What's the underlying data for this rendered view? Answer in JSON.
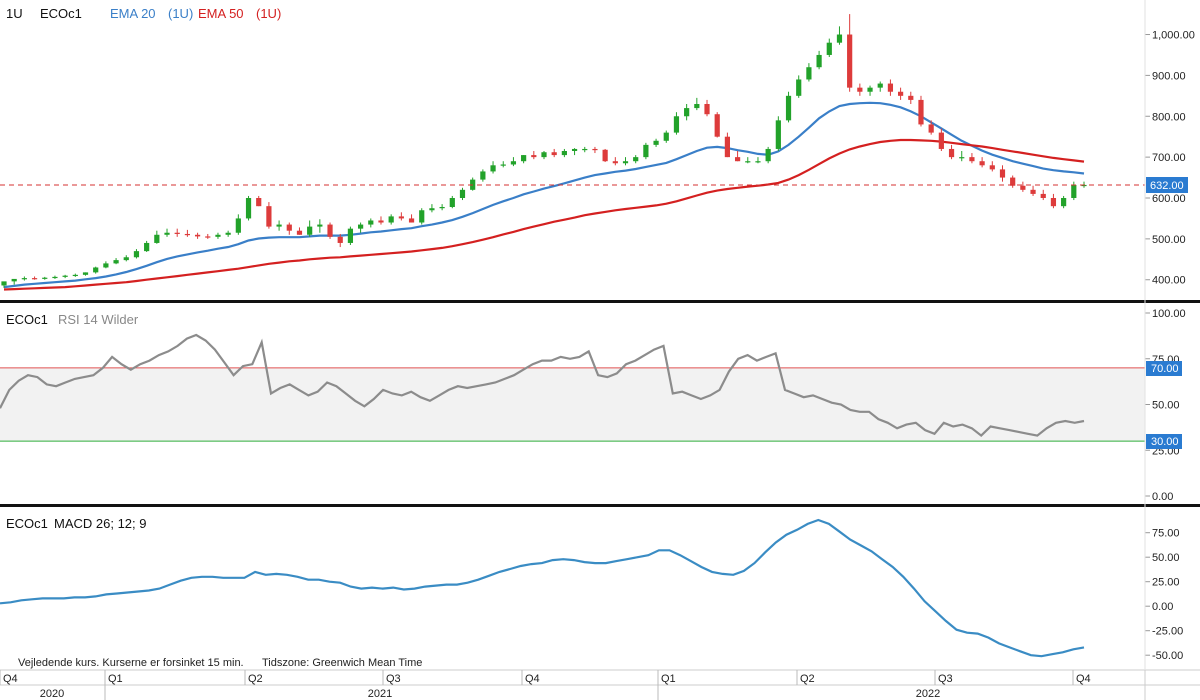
{
  "price_panel": {
    "interval": "1U",
    "symbol": "ECOc1",
    "ema20_label": "EMA 20",
    "ema20_suffix": "(1U)",
    "ema50_label": "EMA 50",
    "ema50_suffix": "(1U)",
    "last_price_label": "632.00",
    "y_ticks": [
      "1,000.00",
      "900.00",
      "800.00",
      "700.00",
      "600.00",
      "500.00",
      "400.00"
    ]
  },
  "rsi_panel": {
    "symbol": "ECOc1",
    "label": "RSI 14 Wilder",
    "upper_tag": "70.00",
    "lower_tag": "30.00",
    "y_ticks": [
      "100.00",
      "75.00",
      "50.00",
      "25.00",
      "0.00"
    ]
  },
  "macd_panel": {
    "symbol": "ECOc1",
    "label": "MACD 26; 12; 9",
    "y_ticks": [
      "75.00",
      "50.00",
      "25.00",
      "0.00",
      "-25.00",
      "-50.00"
    ]
  },
  "footer": {
    "note": "Vejledende kurs. Kurserne er forsinket 15 min.",
    "timezone": "Tidszone: Greenwich Mean Time"
  },
  "x_axis": {
    "quarters": [
      "Q4",
      "Q1",
      "Q2",
      "Q3",
      "Q4",
      "Q1",
      "Q2",
      "Q3",
      "Q4"
    ],
    "years": [
      "2020",
      "2021",
      "2022"
    ]
  },
  "colors": {
    "up": "#22a22a",
    "down": "#dd3b3b",
    "ema20": "#3a7fc8",
    "ema50": "#d42020",
    "rsi": "#8c8c8c",
    "macd": "#3a8cc4",
    "tag_blue": "#2a7bd1"
  },
  "chart_data": [
    {
      "type": "candlestick",
      "y_range": [
        370,
        1060
      ],
      "x_index_range": [
        0,
        107
      ],
      "series": [
        {
          "name": "ECOc1",
          "open": [
            386,
            396,
            402,
            404,
            403,
            405,
            407,
            410,
            412,
            418,
            430,
            440,
            448,
            455,
            470,
            490,
            510,
            515,
            512,
            510,
            506,
            505,
            510,
            515,
            550,
            600,
            580,
            530,
            535,
            520,
            510,
            530,
            535,
            505,
            490,
            525,
            535,
            545,
            540,
            555,
            550,
            540,
            570,
            575,
            578,
            600,
            620,
            645,
            665,
            680,
            682,
            690,
            705,
            700,
            712,
            705,
            715,
            720,
            720,
            718,
            690,
            685,
            690,
            700,
            730,
            740,
            760,
            800,
            820,
            830,
            805,
            750,
            700,
            690,
            690,
            690,
            720,
            790,
            850,
            890,
            920,
            950,
            980,
            1000,
            870,
            860,
            870,
            880,
            860,
            850,
            840,
            780,
            760,
            720,
            700,
            700,
            690,
            680,
            670,
            650,
            630,
            620,
            610,
            600,
            580,
            600,
            632
          ],
          "high": [
            390,
            400,
            408,
            408,
            407,
            410,
            412,
            415,
            418,
            432,
            445,
            453,
            460,
            475,
            495,
            520,
            525,
            525,
            522,
            515,
            512,
            515,
            520,
            560,
            605,
            605,
            590,
            545,
            540,
            528,
            545,
            548,
            540,
            512,
            530,
            540,
            550,
            555,
            560,
            565,
            560,
            575,
            585,
            585,
            605,
            625,
            650,
            670,
            690,
            690,
            700,
            705,
            715,
            715,
            720,
            720,
            722,
            725,
            725,
            720,
            700,
            700,
            705,
            735,
            745,
            765,
            810,
            830,
            845,
            840,
            810,
            760,
            715,
            700,
            700,
            725,
            800,
            860,
            900,
            930,
            960,
            990,
            1020,
            1050,
            880,
            875,
            885,
            890,
            870,
            860,
            850,
            790,
            770,
            730,
            715,
            710,
            700,
            690,
            680,
            655,
            640,
            630,
            620,
            610,
            605,
            640,
            640
          ],
          "low": [
            380,
            388,
            398,
            400,
            400,
            402,
            404,
            407,
            410,
            415,
            428,
            438,
            445,
            452,
            468,
            488,
            505,
            505,
            505,
            500,
            500,
            500,
            505,
            510,
            545,
            580,
            525,
            520,
            510,
            510,
            505,
            515,
            500,
            480,
            485,
            515,
            528,
            535,
            535,
            545,
            540,
            535,
            565,
            570,
            575,
            595,
            618,
            640,
            660,
            675,
            678,
            685,
            695,
            695,
            700,
            700,
            705,
            712,
            710,
            688,
            680,
            680,
            685,
            695,
            725,
            735,
            755,
            790,
            815,
            800,
            748,
            700,
            690,
            685,
            685,
            685,
            715,
            785,
            845,
            885,
            915,
            945,
            975,
            860,
            850,
            850,
            860,
            850,
            840,
            830,
            775,
            755,
            715,
            695,
            690,
            685,
            675,
            665,
            640,
            625,
            615,
            605,
            595,
            575,
            575,
            595,
            625
          ],
          "close": [
            396,
            402,
            404,
            403,
            405,
            407,
            410,
            412,
            418,
            430,
            440,
            448,
            455,
            470,
            490,
            510,
            515,
            512,
            510,
            506,
            505,
            510,
            515,
            550,
            600,
            580,
            530,
            535,
            520,
            510,
            530,
            535,
            505,
            490,
            525,
            535,
            545,
            540,
            555,
            550,
            540,
            570,
            575,
            578,
            600,
            620,
            645,
            665,
            680,
            682,
            690,
            705,
            700,
            712,
            705,
            715,
            720,
            720,
            718,
            690,
            685,
            690,
            700,
            730,
            740,
            760,
            800,
            820,
            830,
            805,
            750,
            700,
            690,
            690,
            690,
            720,
            790,
            850,
            890,
            920,
            950,
            980,
            1000,
            870,
            860,
            870,
            880,
            860,
            850,
            840,
            780,
            760,
            720,
            700,
            700,
            690,
            680,
            670,
            650,
            630,
            620,
            610,
            600,
            580,
            600,
            632,
            632
          ]
        },
        {
          "name": "EMA 20",
          "values": [
            382,
            385,
            388,
            390,
            392,
            394,
            396,
            398,
            401,
            404,
            408,
            413,
            419,
            426,
            434,
            443,
            451,
            457,
            462,
            467,
            471,
            476,
            480,
            487,
            496,
            501,
            503,
            504,
            504,
            504,
            506,
            508,
            508,
            508,
            510,
            513,
            516,
            518,
            521,
            524,
            526,
            531,
            535,
            540,
            546,
            554,
            563,
            573,
            583,
            592,
            600,
            609,
            616,
            623,
            629,
            636,
            643,
            650,
            656,
            660,
            664,
            667,
            671,
            676,
            681,
            686,
            695,
            705,
            715,
            723,
            725,
            722,
            717,
            713,
            708,
            706,
            714,
            730,
            750,
            772,
            795,
            812,
            825,
            830,
            832,
            833,
            832,
            828,
            822,
            812,
            800,
            785,
            770,
            755,
            740,
            728,
            716,
            706,
            698,
            690,
            684,
            678,
            672,
            668,
            665,
            663,
            660
          ]
        },
        {
          "name": "EMA 50",
          "values": [
            376,
            377,
            378,
            379,
            380,
            381,
            382,
            384,
            386,
            388,
            390,
            392,
            394,
            397,
            400,
            403,
            406,
            409,
            412,
            415,
            418,
            421,
            424,
            427,
            431,
            435,
            439,
            442,
            445,
            447,
            450,
            452,
            454,
            455,
            457,
            459,
            461,
            463,
            465,
            467,
            469,
            472,
            475,
            478,
            482,
            487,
            492,
            498,
            504,
            511,
            517,
            524,
            530,
            536,
            542,
            547,
            552,
            558,
            562,
            566,
            570,
            573,
            576,
            579,
            582,
            586,
            592,
            599,
            606,
            613,
            618,
            622,
            625,
            628,
            630,
            633,
            637,
            645,
            656,
            669,
            683,
            697,
            709,
            719,
            726,
            732,
            737,
            740,
            742,
            742,
            741,
            740,
            738,
            735,
            732,
            729,
            726,
            722,
            718,
            714,
            710,
            706,
            702,
            698,
            695,
            692,
            689
          ]
        }
      ]
    },
    {
      "type": "line",
      "y_range": [
        0,
        100
      ],
      "reference_lines": [
        70,
        30
      ],
      "series": [
        {
          "name": "RSI 14 Wilder",
          "values": [
            48,
            58,
            63,
            66,
            65,
            61,
            60,
            62,
            64,
            65,
            66,
            70,
            76,
            72,
            69,
            72,
            74,
            77,
            79,
            82,
            86,
            88,
            85,
            80,
            73,
            66,
            71,
            72,
            84,
            56,
            59,
            61,
            58,
            55,
            57,
            62,
            60,
            56,
            52,
            49,
            53,
            58,
            56,
            55,
            57,
            54,
            52,
            55,
            58,
            60,
            59,
            60,
            61,
            62,
            64,
            66,
            69,
            72,
            74,
            74,
            76,
            75,
            76,
            79,
            66,
            65,
            67,
            72,
            74,
            77,
            80,
            82,
            56,
            57,
            55,
            53,
            55,
            58,
            68,
            75,
            77,
            74,
            76,
            78,
            58,
            56,
            54,
            55,
            53,
            51,
            50,
            47,
            46,
            46,
            42,
            40,
            37,
            39,
            40,
            36,
            34,
            40,
            38,
            39,
            37,
            33,
            38,
            37,
            36,
            35,
            34,
            33,
            37,
            40,
            41,
            40,
            41
          ]
        }
      ]
    },
    {
      "type": "line",
      "y_range": [
        -60,
        90
      ],
      "series": [
        {
          "name": "MACD 26; 12; 9",
          "values": [
            3,
            4,
            6,
            7,
            8,
            8,
            8,
            9,
            9,
            10,
            12,
            13,
            14,
            15,
            16,
            18,
            22,
            26,
            29,
            30,
            30,
            29,
            29,
            29,
            35,
            32,
            33,
            32,
            30,
            27,
            27,
            25,
            24,
            20,
            18,
            19,
            18,
            19,
            17,
            18,
            20,
            21,
            22,
            22,
            24,
            27,
            31,
            35,
            38,
            41,
            43,
            44,
            47,
            48,
            47,
            45,
            44,
            44,
            46,
            48,
            50,
            52,
            57,
            57,
            52,
            46,
            40,
            35,
            33,
            32,
            36,
            44,
            55,
            65,
            73,
            78,
            84,
            88,
            84,
            76,
            68,
            62,
            56,
            48,
            40,
            30,
            18,
            5,
            -5,
            -15,
            -24,
            -27,
            -28,
            -32,
            -38,
            -42,
            -46,
            -50,
            -51,
            -49,
            -47,
            -44,
            -42
          ]
        }
      ]
    }
  ]
}
